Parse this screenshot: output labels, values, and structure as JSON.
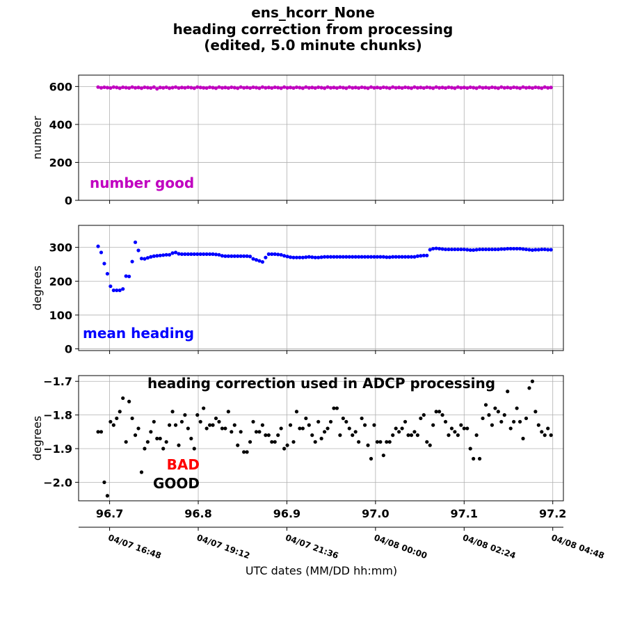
{
  "figure": {
    "title_lines": [
      "ens_hcorr_None",
      "heading correction from processing",
      "(edited, 5.0 minute chunks)"
    ],
    "xlabel": "UTC dates (MM/DD hh:mm)",
    "date_ticks": [
      {
        "x": 96.7,
        "label": "04/07 16:48"
      },
      {
        "x": 96.8,
        "label": "04/07 19:12"
      },
      {
        "x": 96.9,
        "label": "04/07 21:36"
      },
      {
        "x": 97.0,
        "label": "04/08 00:00"
      },
      {
        "x": 97.1,
        "label": "04/08 02:24"
      },
      {
        "x": 97.2,
        "label": "04/08 04:48"
      }
    ]
  },
  "chart_data": [
    {
      "type": "scatter",
      "name": "number good",
      "annotation": "number good",
      "annotation_color": "#c000c0",
      "color": "#c000c0",
      "ylabel": "number",
      "xlim": [
        96.665,
        97.212
      ],
      "ylim": [
        0,
        660
      ],
      "yticks": [
        0,
        200,
        400,
        600
      ],
      "ytick_labels": [
        "0",
        "200",
        "400",
        "600"
      ],
      "xticks": [
        96.7,
        96.8,
        96.9,
        97.0,
        97.1,
        97.2
      ],
      "xtick_labels": [],
      "grid": true,
      "x": [
        96.687,
        96.6905,
        96.694,
        96.6975,
        96.701,
        96.7045,
        96.708,
        96.7115,
        96.715,
        96.7185,
        96.722,
        96.7255,
        96.729,
        96.7325,
        96.736,
        96.7395,
        96.743,
        96.7465,
        96.75,
        96.7535,
        96.757,
        96.7605,
        96.764,
        96.7675,
        96.771,
        96.7745,
        96.778,
        96.7815,
        96.785,
        96.7885,
        96.792,
        96.7955,
        96.799,
        96.8025,
        96.806,
        96.8095,
        96.813,
        96.8165,
        96.82,
        96.8235,
        96.827,
        96.8305,
        96.834,
        96.8375,
        96.841,
        96.8445,
        96.848,
        96.8515,
        96.855,
        96.8585,
        96.862,
        96.8655,
        96.869,
        96.8725,
        96.876,
        96.8795,
        96.883,
        96.8865,
        96.89,
        96.8935,
        96.897,
        96.9005,
        96.904,
        96.9075,
        96.911,
        96.9145,
        96.918,
        96.9215,
        96.925,
        96.9285,
        96.932,
        96.9355,
        96.939,
        96.9425,
        96.946,
        96.9495,
        96.953,
        96.9565,
        96.96,
        96.9635,
        96.967,
        96.9705,
        96.974,
        96.9775,
        96.981,
        96.9845,
        96.988,
        96.9915,
        96.995,
        96.9985,
        97.002,
        97.0055,
        97.009,
        97.0125,
        97.016,
        97.0195,
        97.023,
        97.0265,
        97.03,
        97.0335,
        97.037,
        97.0405,
        97.044,
        97.0475,
        97.051,
        97.0545,
        97.058,
        97.0615,
        97.065,
        97.0685,
        97.072,
        97.0755,
        97.079,
        97.0825,
        97.086,
        97.0895,
        97.093,
        97.0965,
        97.1,
        97.1035,
        97.107,
        97.1105,
        97.114,
        97.1175,
        97.121,
        97.1245,
        97.128,
        97.1315,
        97.135,
        97.1385,
        97.142,
        97.1455,
        97.149,
        97.1525,
        97.156,
        97.1595,
        97.163,
        97.1665,
        97.17,
        97.1735,
        97.177,
        97.1805,
        97.184,
        97.1875,
        97.191,
        97.1945,
        97.198
      ],
      "y": [
        597,
        593,
        596,
        594,
        592,
        597,
        595,
        591,
        596,
        594,
        592,
        597,
        593,
        595,
        591,
        596,
        594,
        592,
        597,
        588,
        595,
        593,
        596,
        591,
        594,
        597,
        592,
        595,
        593,
        596,
        594,
        591,
        597,
        595,
        593,
        592,
        596,
        594,
        591,
        597,
        593,
        595,
        592,
        596,
        594,
        591,
        597,
        593,
        595,
        592,
        596,
        594,
        591,
        597,
        593,
        595,
        592,
        596,
        594,
        591,
        597,
        593,
        595,
        592,
        596,
        594,
        591,
        597,
        593,
        595,
        592,
        596,
        594,
        591,
        597,
        593,
        595,
        592,
        596,
        594,
        591,
        597,
        593,
        595,
        592,
        596,
        594,
        591,
        597,
        593,
        595,
        592,
        596,
        594,
        591,
        597,
        593,
        595,
        592,
        596,
        594,
        591,
        597,
        593,
        595,
        592,
        596,
        594,
        591,
        597,
        593,
        595,
        592,
        596,
        594,
        591,
        597,
        593,
        595,
        592,
        596,
        594,
        591,
        597,
        593,
        595,
        592,
        596,
        594,
        591,
        597,
        593,
        595,
        592,
        596,
        594,
        591,
        597,
        593,
        595,
        592,
        596,
        594,
        591,
        597,
        593,
        595
      ]
    },
    {
      "type": "scatter",
      "name": "mean heading",
      "annotation": "mean heading",
      "annotation_color": "#0000ff",
      "color": "#0000ff",
      "ylabel": "degrees",
      "xlim": [
        96.665,
        97.212
      ],
      "ylim": [
        -5,
        365
      ],
      "yticks": [
        0,
        100,
        200,
        300
      ],
      "ytick_labels": [
        "0",
        "100",
        "200",
        "300"
      ],
      "xticks": [
        96.7,
        96.8,
        96.9,
        97.0,
        97.1,
        97.2
      ],
      "xtick_labels": [],
      "grid": true,
      "x": [
        96.687,
        96.6905,
        96.694,
        96.6975,
        96.701,
        96.7045,
        96.708,
        96.7115,
        96.715,
        96.7185,
        96.722,
        96.7255,
        96.729,
        96.7325,
        96.736,
        96.7395,
        96.743,
        96.7465,
        96.75,
        96.7535,
        96.757,
        96.7605,
        96.764,
        96.7675,
        96.771,
        96.7745,
        96.778,
        96.7815,
        96.785,
        96.7885,
        96.792,
        96.7955,
        96.799,
        96.8025,
        96.806,
        96.8095,
        96.813,
        96.8165,
        96.82,
        96.8235,
        96.827,
        96.8305,
        96.834,
        96.8375,
        96.841,
        96.8445,
        96.848,
        96.8515,
        96.855,
        96.8585,
        96.862,
        96.8655,
        96.869,
        96.8725,
        96.876,
        96.8795,
        96.883,
        96.8865,
        96.89,
        96.8935,
        96.897,
        96.9005,
        96.904,
        96.9075,
        96.911,
        96.9145,
        96.918,
        96.9215,
        96.925,
        96.9285,
        96.932,
        96.9355,
        96.939,
        96.9425,
        96.946,
        96.9495,
        96.953,
        96.9565,
        96.96,
        96.9635,
        96.967,
        96.9705,
        96.974,
        96.9775,
        96.981,
        96.9845,
        96.988,
        96.9915,
        96.995,
        96.9985,
        97.002,
        97.0055,
        97.009,
        97.0125,
        97.016,
        97.0195,
        97.023,
        97.0265,
        97.03,
        97.0335,
        97.037,
        97.0405,
        97.044,
        97.0475,
        97.051,
        97.0545,
        97.058,
        97.0615,
        97.065,
        97.0685,
        97.072,
        97.0755,
        97.079,
        97.0825,
        97.086,
        97.0895,
        97.093,
        97.0965,
        97.1,
        97.1035,
        97.107,
        97.1105,
        97.114,
        97.1175,
        97.121,
        97.1245,
        97.128,
        97.1315,
        97.135,
        97.1385,
        97.142,
        97.1455,
        97.149,
        97.1525,
        97.156,
        97.1595,
        97.163,
        97.1665,
        97.17,
        97.1735,
        97.177,
        97.1805,
        97.184,
        97.1875,
        97.191,
        97.1945,
        97.198
      ],
      "y": [
        303,
        285,
        252,
        222,
        185,
        173,
        173,
        173,
        177,
        215,
        214,
        258,
        315,
        291,
        267,
        266,
        269,
        272,
        274,
        275,
        276,
        277,
        278,
        278,
        283,
        285,
        281,
        280,
        280,
        280,
        280,
        280,
        280,
        280,
        280,
        280,
        280,
        280,
        279,
        278,
        275,
        274,
        274,
        274,
        274,
        274,
        274,
        274,
        274,
        273,
        266,
        263,
        260,
        257,
        270,
        280,
        280,
        280,
        279,
        278,
        275,
        273,
        271,
        270,
        270,
        270,
        270,
        271,
        272,
        271,
        270,
        270,
        271,
        272,
        272,
        272,
        272,
        272,
        272,
        272,
        272,
        272,
        272,
        272,
        272,
        272,
        272,
        272,
        272,
        272,
        272,
        272,
        272,
        271,
        271,
        272,
        272,
        272,
        272,
        272,
        272,
        272,
        272,
        274,
        275,
        276,
        276,
        293,
        296,
        297,
        296,
        295,
        294,
        294,
        294,
        294,
        294,
        294,
        294,
        293,
        292,
        292,
        293,
        294,
        294,
        294,
        294,
        294,
        294,
        294,
        295,
        295,
        296,
        296,
        296,
        296,
        296,
        295,
        294,
        293,
        292,
        293,
        293,
        294,
        294,
        293,
        293
      ]
    },
    {
      "type": "scatter",
      "name": "heading correction used in ADCP processing",
      "annotation": "heading correction used in ADCP processing",
      "legend": [
        {
          "label": "BAD",
          "color": "#ff0000"
        },
        {
          "label": "GOOD",
          "color": "#000000"
        }
      ],
      "color": "#000000",
      "ylabel": "degrees",
      "xlim": [
        96.665,
        97.212
      ],
      "ylim": [
        -2.055,
        -1.683
      ],
      "yticks": [
        -2.0,
        -1.9,
        -1.8,
        -1.7
      ],
      "ytick_labels": [
        "−2.0",
        "−1.9",
        "−1.8",
        "−1.7"
      ],
      "xticks": [
        96.7,
        96.8,
        96.9,
        97.0,
        97.1,
        97.2
      ],
      "xtick_labels": [
        "96.7",
        "96.8",
        "96.9",
        "97.0",
        "97.1",
        "97.2"
      ],
      "grid": true,
      "x": [
        96.687,
        96.6905,
        96.694,
        96.6975,
        96.701,
        96.7045,
        96.708,
        96.7115,
        96.715,
        96.7185,
        96.722,
        96.7255,
        96.729,
        96.7325,
        96.736,
        96.7395,
        96.743,
        96.7465,
        96.75,
        96.7535,
        96.757,
        96.7605,
        96.764,
        96.7675,
        96.771,
        96.7745,
        96.778,
        96.7815,
        96.785,
        96.7885,
        96.792,
        96.7955,
        96.799,
        96.8025,
        96.806,
        96.8095,
        96.813,
        96.8165,
        96.82,
        96.8235,
        96.827,
        96.8305,
        96.834,
        96.8375,
        96.841,
        96.8445,
        96.848,
        96.8515,
        96.855,
        96.8585,
        96.862,
        96.8655,
        96.869,
        96.8725,
        96.876,
        96.8795,
        96.883,
        96.8865,
        96.89,
        96.8935,
        96.897,
        96.9005,
        96.904,
        96.9075,
        96.911,
        96.9145,
        96.918,
        96.9215,
        96.925,
        96.9285,
        96.932,
        96.9355,
        96.939,
        96.9425,
        96.946,
        96.9495,
        96.953,
        96.9565,
        96.96,
        96.9635,
        96.967,
        96.9705,
        96.974,
        96.9775,
        96.981,
        96.9845,
        96.988,
        96.9915,
        96.995,
        96.9985,
        97.002,
        97.0055,
        97.009,
        97.0125,
        97.016,
        97.0195,
        97.023,
        97.0265,
        97.03,
        97.0335,
        97.037,
        97.0405,
        97.044,
        97.0475,
        97.051,
        97.0545,
        97.058,
        97.0615,
        97.065,
        97.0685,
        97.072,
        97.0755,
        97.079,
        97.0825,
        97.086,
        97.0895,
        97.093,
        97.0965,
        97.1,
        97.1035,
        97.107,
        97.1105,
        97.114,
        97.1175,
        97.121,
        97.1245,
        97.128,
        97.1315,
        97.135,
        97.1385,
        97.142,
        97.1455,
        97.149,
        97.1525,
        97.156,
        97.1595,
        97.163,
        97.1665,
        97.17,
        97.1735,
        97.177,
        97.1805,
        97.184,
        97.1875,
        97.191,
        97.1945,
        97.198
      ],
      "y": [
        -1.85,
        -1.85,
        -2.0,
        -2.04,
        -1.82,
        -1.83,
        -1.81,
        -1.79,
        -1.75,
        -1.88,
        -1.76,
        -1.81,
        -1.86,
        -1.84,
        -1.97,
        -1.9,
        -1.88,
        -1.85,
        -1.82,
        -1.87,
        -1.87,
        -1.9,
        -1.88,
        -1.83,
        -1.79,
        -1.83,
        -1.89,
        -1.82,
        -1.8,
        -1.84,
        -1.87,
        -1.9,
        -1.8,
        -1.82,
        -1.78,
        -1.84,
        -1.83,
        -1.83,
        -1.81,
        -1.82,
        -1.84,
        -1.84,
        -1.79,
        -1.85,
        -1.83,
        -1.89,
        -1.85,
        -1.91,
        -1.91,
        -1.88,
        -1.82,
        -1.85,
        -1.85,
        -1.83,
        -1.86,
        -1.86,
        -1.88,
        -1.88,
        -1.86,
        -1.84,
        -1.9,
        -1.89,
        -1.83,
        -1.88,
        -1.79,
        -1.84,
        -1.84,
        -1.81,
        -1.83,
        -1.86,
        -1.88,
        -1.82,
        -1.87,
        -1.85,
        -1.84,
        -1.82,
        -1.78,
        -1.78,
        -1.86,
        -1.81,
        -1.82,
        -1.84,
        -1.86,
        -1.85,
        -1.88,
        -1.81,
        -1.83,
        -1.89,
        -1.93,
        -1.83,
        -1.88,
        -1.88,
        -1.92,
        -1.88,
        -1.88,
        -1.86,
        -1.84,
        -1.85,
        -1.84,
        -1.82,
        -1.86,
        -1.86,
        -1.85,
        -1.86,
        -1.81,
        -1.8,
        -1.88,
        -1.89,
        -1.83,
        -1.79,
        -1.79,
        -1.8,
        -1.82,
        -1.86,
        -1.84,
        -1.85,
        -1.86,
        -1.83,
        -1.84,
        -1.84,
        -1.9,
        -1.93,
        -1.86,
        -1.93,
        -1.81,
        -1.77,
        -1.8,
        -1.83,
        -1.78,
        -1.79,
        -1.82,
        -1.8,
        -1.73,
        -1.84,
        -1.82,
        -1.78,
        -1.82,
        -1.87,
        -1.81,
        -1.72,
        -1.7,
        -1.79,
        -1.83,
        -1.85,
        -1.86,
        -1.84,
        -1.86
      ]
    }
  ]
}
